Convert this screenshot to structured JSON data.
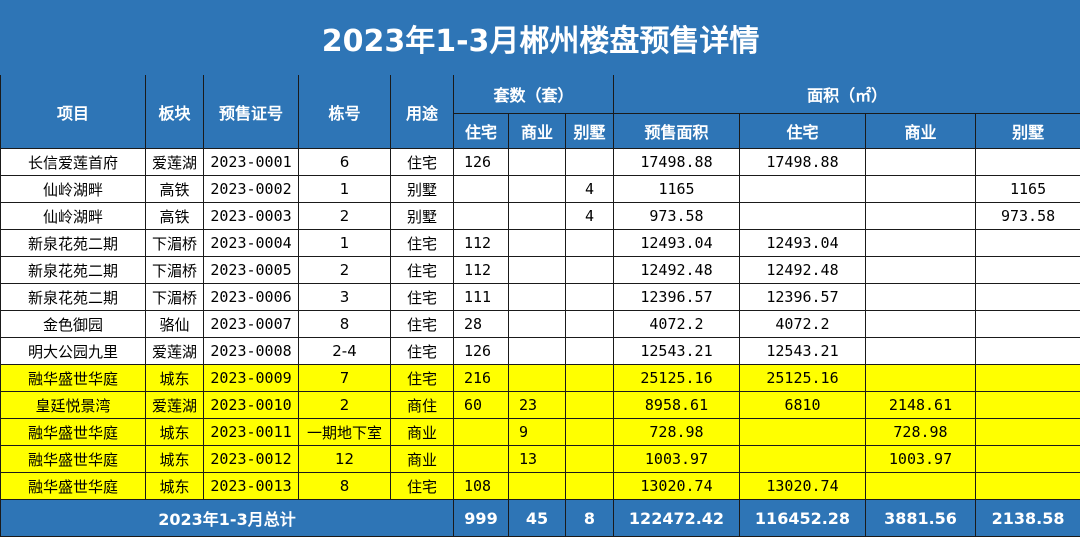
{
  "title": "2023年1-3月郴州楼盘预售详情",
  "headers": {
    "project": "项目",
    "district": "板块",
    "permit": "预售证号",
    "building": "栋号",
    "usage": "用途",
    "units_group": "套数（套）",
    "area_group": "面积（㎡）",
    "units_residential": "住宅",
    "units_commercial": "商业",
    "units_villa": "别墅",
    "area_presale": "预售面积",
    "area_residential": "住宅",
    "area_commercial": "商业",
    "area_villa": "别墅"
  },
  "rows": [
    {
      "project": "长信爱莲首府",
      "district": "爱莲湖",
      "permit": "2023-0001",
      "building": "6",
      "usage": "住宅",
      "u_res": "126",
      "u_com": "",
      "u_villa": "",
      "a_total": "17498.88",
      "a_res": "17498.88",
      "a_com": "",
      "a_villa": "",
      "highlight": false
    },
    {
      "project": "仙岭湖畔",
      "district": "高铁",
      "permit": "2023-0002",
      "building": "1",
      "usage": "别墅",
      "u_res": "",
      "u_com": "",
      "u_villa": "4",
      "a_total": "1165",
      "a_res": "",
      "a_com": "",
      "a_villa": "1165",
      "highlight": false
    },
    {
      "project": "仙岭湖畔",
      "district": "高铁",
      "permit": "2023-0003",
      "building": "2",
      "usage": "别墅",
      "u_res": "",
      "u_com": "",
      "u_villa": "4",
      "a_total": "973.58",
      "a_res": "",
      "a_com": "",
      "a_villa": "973.58",
      "highlight": false
    },
    {
      "project": "新泉花苑二期",
      "district": "下湄桥",
      "permit": "2023-0004",
      "building": "1",
      "usage": "住宅",
      "u_res": "112",
      "u_com": "",
      "u_villa": "",
      "a_total": "12493.04",
      "a_res": "12493.04",
      "a_com": "",
      "a_villa": "",
      "highlight": false
    },
    {
      "project": "新泉花苑二期",
      "district": "下湄桥",
      "permit": "2023-0005",
      "building": "2",
      "usage": "住宅",
      "u_res": "112",
      "u_com": "",
      "u_villa": "",
      "a_total": "12492.48",
      "a_res": "12492.48",
      "a_com": "",
      "a_villa": "",
      "highlight": false
    },
    {
      "project": "新泉花苑二期",
      "district": "下湄桥",
      "permit": "2023-0006",
      "building": "3",
      "usage": "住宅",
      "u_res": "111",
      "u_com": "",
      "u_villa": "",
      "a_total": "12396.57",
      "a_res": "12396.57",
      "a_com": "",
      "a_villa": "",
      "highlight": false
    },
    {
      "project": "金色御园",
      "district": "骆仙",
      "permit": "2023-0007",
      "building": "8",
      "usage": "住宅",
      "u_res": "28",
      "u_com": "",
      "u_villa": "",
      "a_total": "4072.2",
      "a_res": "4072.2",
      "a_com": "",
      "a_villa": "",
      "highlight": false
    },
    {
      "project": "明大公园九里",
      "district": "爱莲湖",
      "permit": "2023-0008",
      "building": "2-4",
      "usage": "住宅",
      "u_res": "126",
      "u_com": "",
      "u_villa": "",
      "a_total": "12543.21",
      "a_res": "12543.21",
      "a_com": "",
      "a_villa": "",
      "highlight": false
    },
    {
      "project": "融华盛世华庭",
      "district": "城东",
      "permit": "2023-0009",
      "building": "7",
      "usage": "住宅",
      "u_res": "216",
      "u_com": "",
      "u_villa": "",
      "a_total": "25125.16",
      "a_res": "25125.16",
      "a_com": "",
      "a_villa": "",
      "highlight": true
    },
    {
      "project": "皇廷悦景湾",
      "district": "爱莲湖",
      "permit": "2023-0010",
      "building": "2",
      "usage": "商住",
      "u_res": "60",
      "u_com": "23",
      "u_villa": "",
      "a_total": "8958.61",
      "a_res": "6810",
      "a_com": "2148.61",
      "a_villa": "",
      "highlight": true
    },
    {
      "project": "融华盛世华庭",
      "district": "城东",
      "permit": "2023-0011",
      "building": "一期地下室",
      "usage": "商业",
      "u_res": "",
      "u_com": "9",
      "u_villa": "",
      "a_total": "728.98",
      "a_res": "",
      "a_com": "728.98",
      "a_villa": "",
      "highlight": true
    },
    {
      "project": "融华盛世华庭",
      "district": "城东",
      "permit": "2023-0012",
      "building": "12",
      "usage": "商业",
      "u_res": "",
      "u_com": "13",
      "u_villa": "",
      "a_total": "1003.97",
      "a_res": "",
      "a_com": "1003.97",
      "a_villa": "",
      "highlight": true
    },
    {
      "project": "融华盛世华庭",
      "district": "城东",
      "permit": "2023-0013",
      "building": "8",
      "usage": "住宅",
      "u_res": "108",
      "u_com": "",
      "u_villa": "",
      "a_total": "13020.74",
      "a_res": "13020.74",
      "a_com": "",
      "a_villa": "",
      "highlight": true
    }
  ],
  "total": {
    "label": "2023年1-3月总计",
    "u_res": "999",
    "u_com": "45",
    "u_villa": "8",
    "a_total": "122472.42",
    "a_res": "116452.28",
    "a_com": "3881.56",
    "a_villa": "2138.58"
  },
  "colors": {
    "header_blue": "#2e75b6",
    "highlight_yellow": "#ffff00"
  }
}
